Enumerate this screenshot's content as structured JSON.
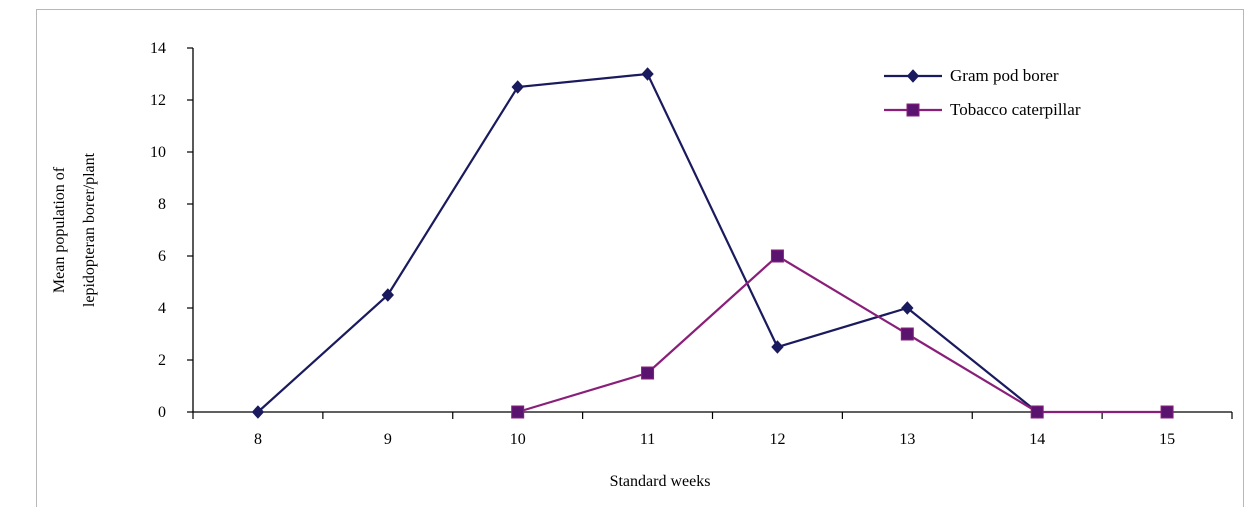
{
  "chart_data": {
    "type": "line",
    "xlabel": "Standard weeks",
    "ylabel_lines": [
      "Mean population of",
      "lepidopteran borer/plant"
    ],
    "categories": [
      "8",
      "9",
      "10",
      "11",
      "12",
      "13",
      "14",
      "15"
    ],
    "yticks": [
      "0",
      "2",
      "4",
      "6",
      "8",
      "10",
      "12",
      "14"
    ],
    "ylim": [
      0,
      14
    ],
    "grid": false,
    "legend_position": "top-right",
    "series": [
      {
        "name": "Gram pod borer",
        "color": "#1a1a5e",
        "marker": "diamond",
        "x": [
          8,
          9,
          10,
          11,
          12,
          13,
          14
        ],
        "values": [
          0,
          4.5,
          12.5,
          13,
          2.5,
          4,
          0
        ]
      },
      {
        "name": "Tobacco caterpillar",
        "color": "#8a1f7a",
        "marker_fill": "#5a1470",
        "marker": "square",
        "x": [
          10,
          11,
          12,
          13,
          14,
          15
        ],
        "values": [
          0,
          1.5,
          6,
          3,
          0,
          0
        ]
      }
    ]
  }
}
